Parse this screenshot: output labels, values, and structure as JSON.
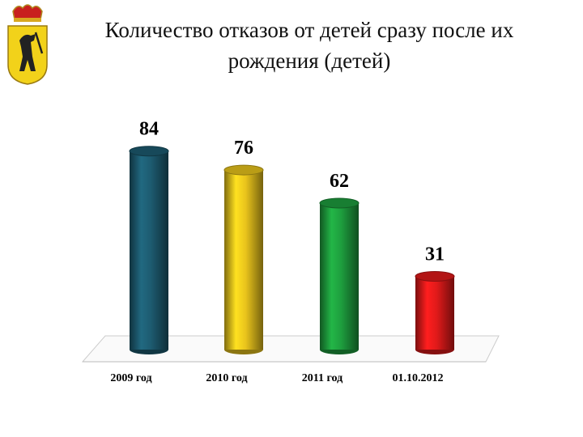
{
  "chart_data": {
    "type": "bar",
    "title": "Количество отказов от детей сразу после их рождения (детей)",
    "categories": [
      "2009 год",
      "2010 год",
      "2011 год",
      "01.10.2012"
    ],
    "values": [
      84,
      76,
      62,
      31
    ],
    "colors": [
      "#1d5b70",
      "#e9c41c",
      "#1e9e3e",
      "#e01a1a"
    ]
  }
}
